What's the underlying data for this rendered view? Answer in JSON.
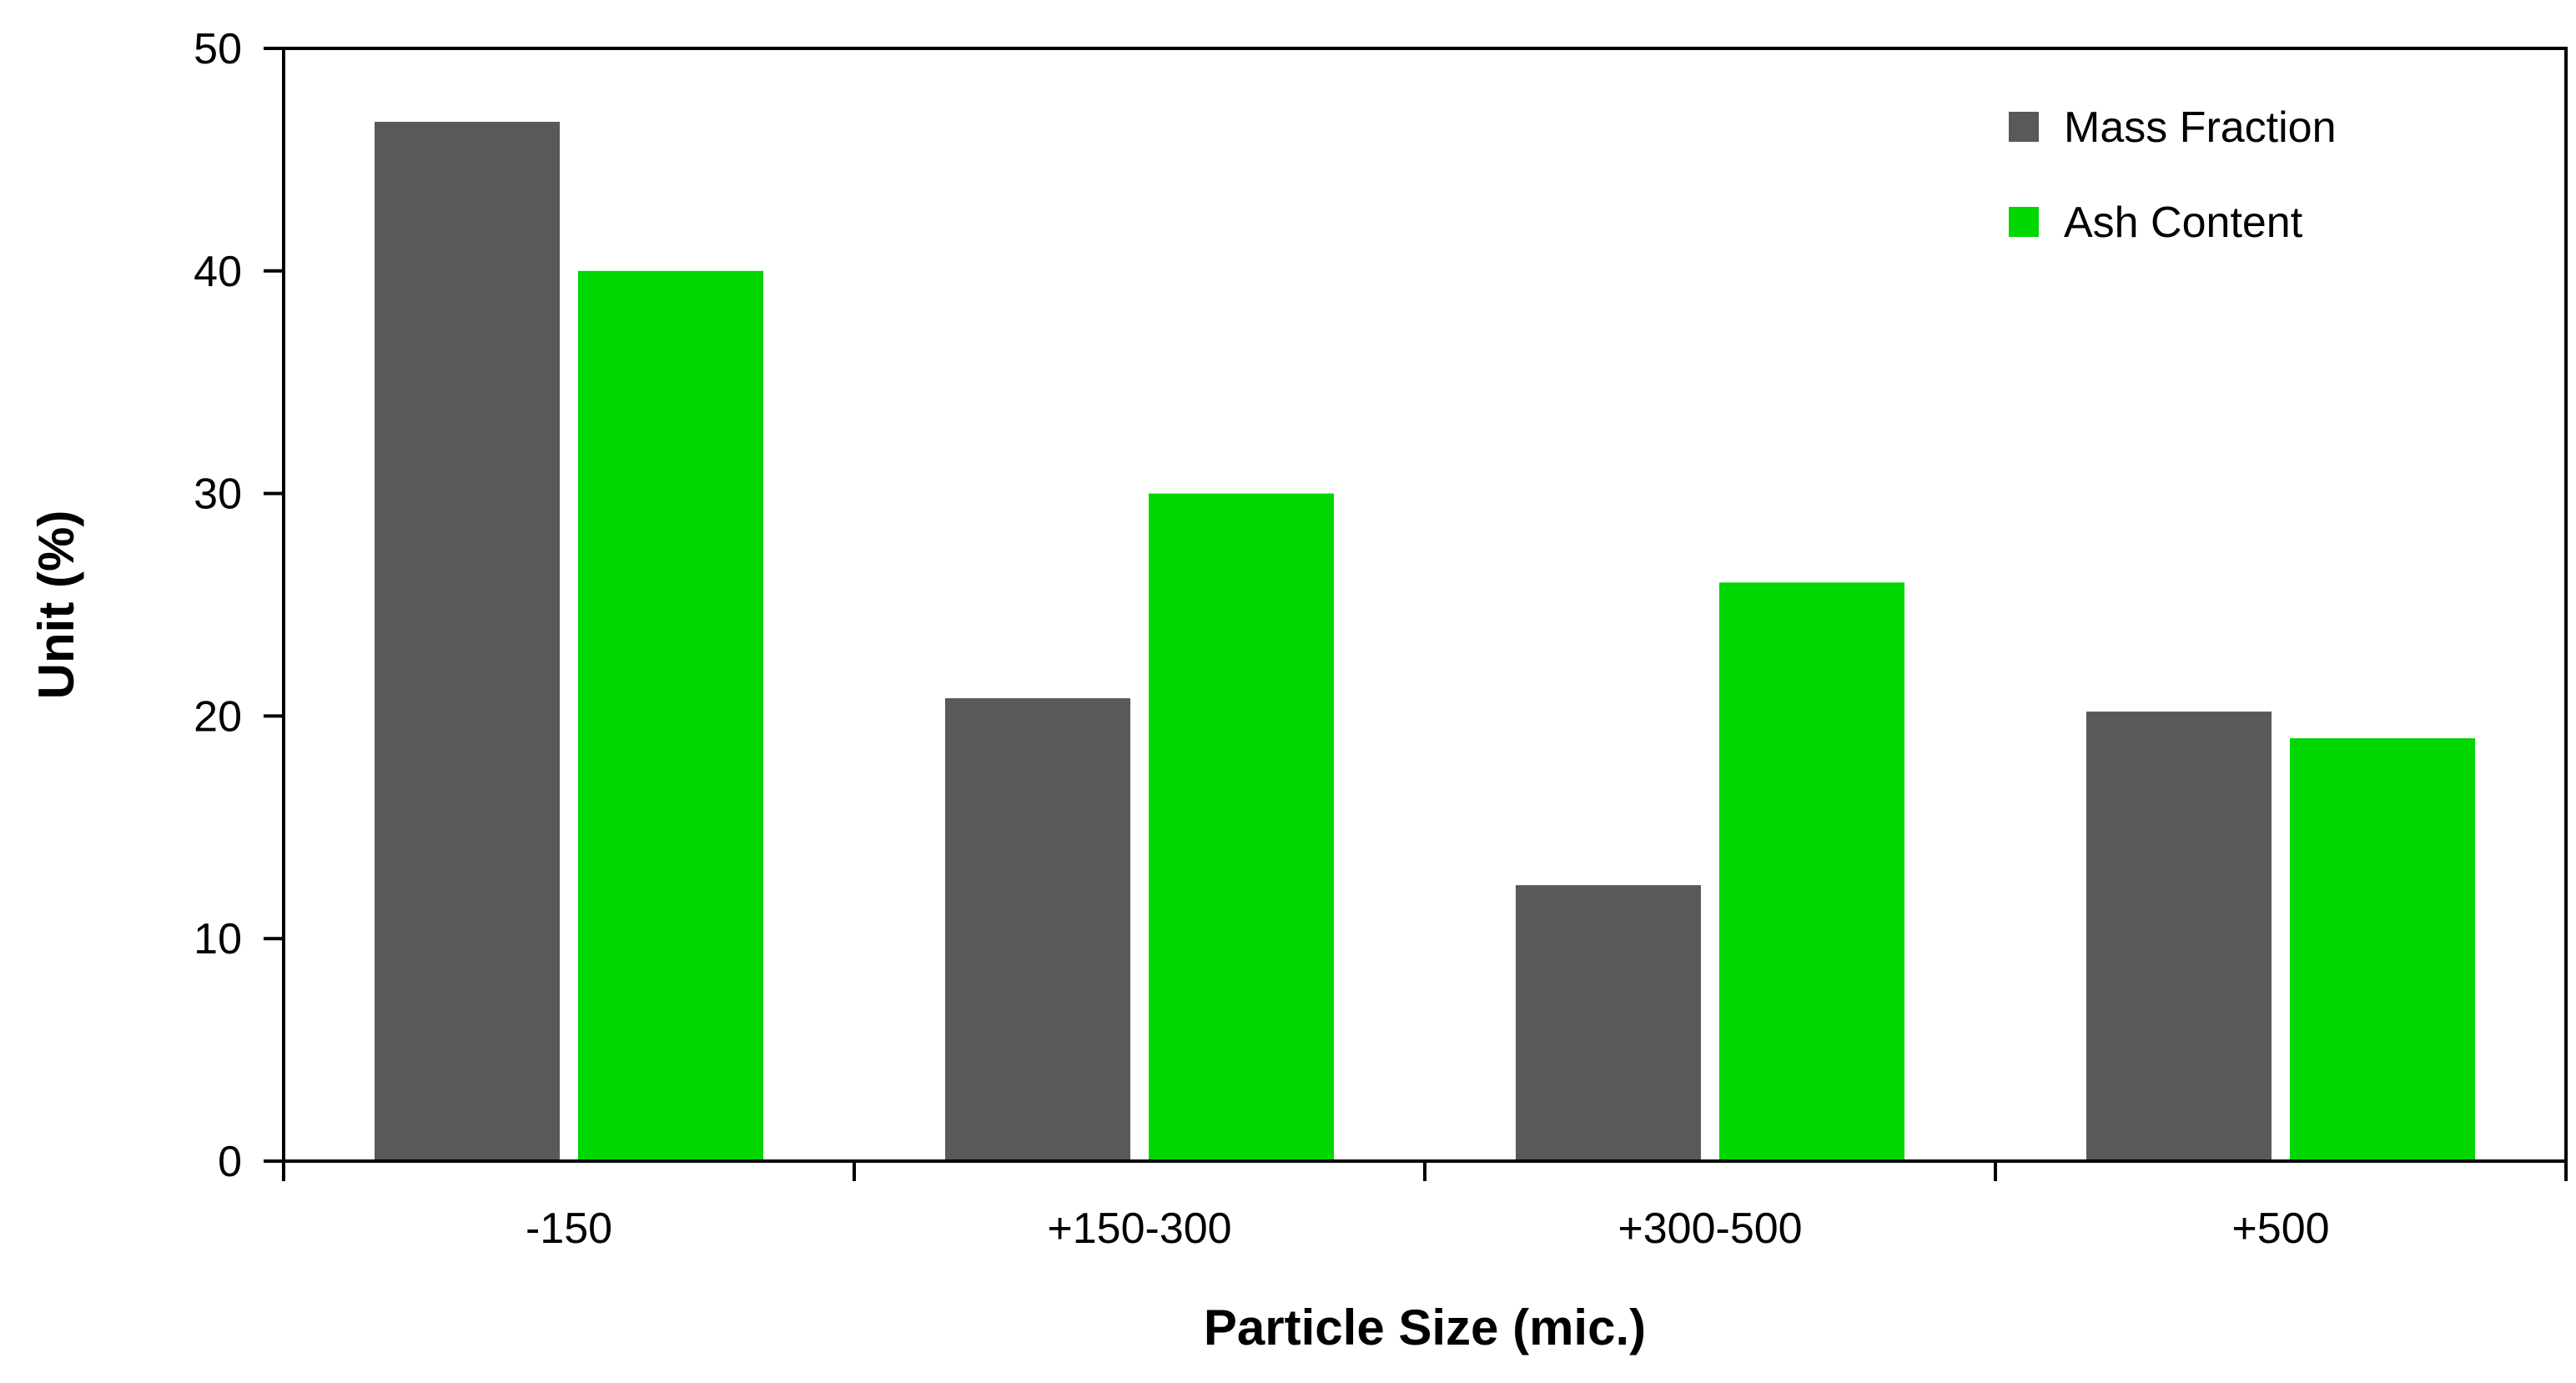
{
  "chart_data": {
    "type": "bar",
    "title": "",
    "xlabel": "Particle Size (mic.)",
    "ylabel": "Unit (%)",
    "categories": [
      "-150",
      "+150-300",
      "+300-500",
      "+500"
    ],
    "series": [
      {
        "name": "Mass Fraction",
        "color": "#595959",
        "values": [
          46.7,
          20.8,
          12.4,
          20.2
        ]
      },
      {
        "name": "Ash Content",
        "color": "#00d600",
        "values": [
          40.0,
          30.0,
          26.0,
          19.0
        ]
      }
    ],
    "ylim": [
      0,
      50
    ],
    "yticks": [
      "0",
      "10",
      "20",
      "30",
      "40",
      "50"
    ],
    "grid": false,
    "legend_position": "top-right"
  }
}
